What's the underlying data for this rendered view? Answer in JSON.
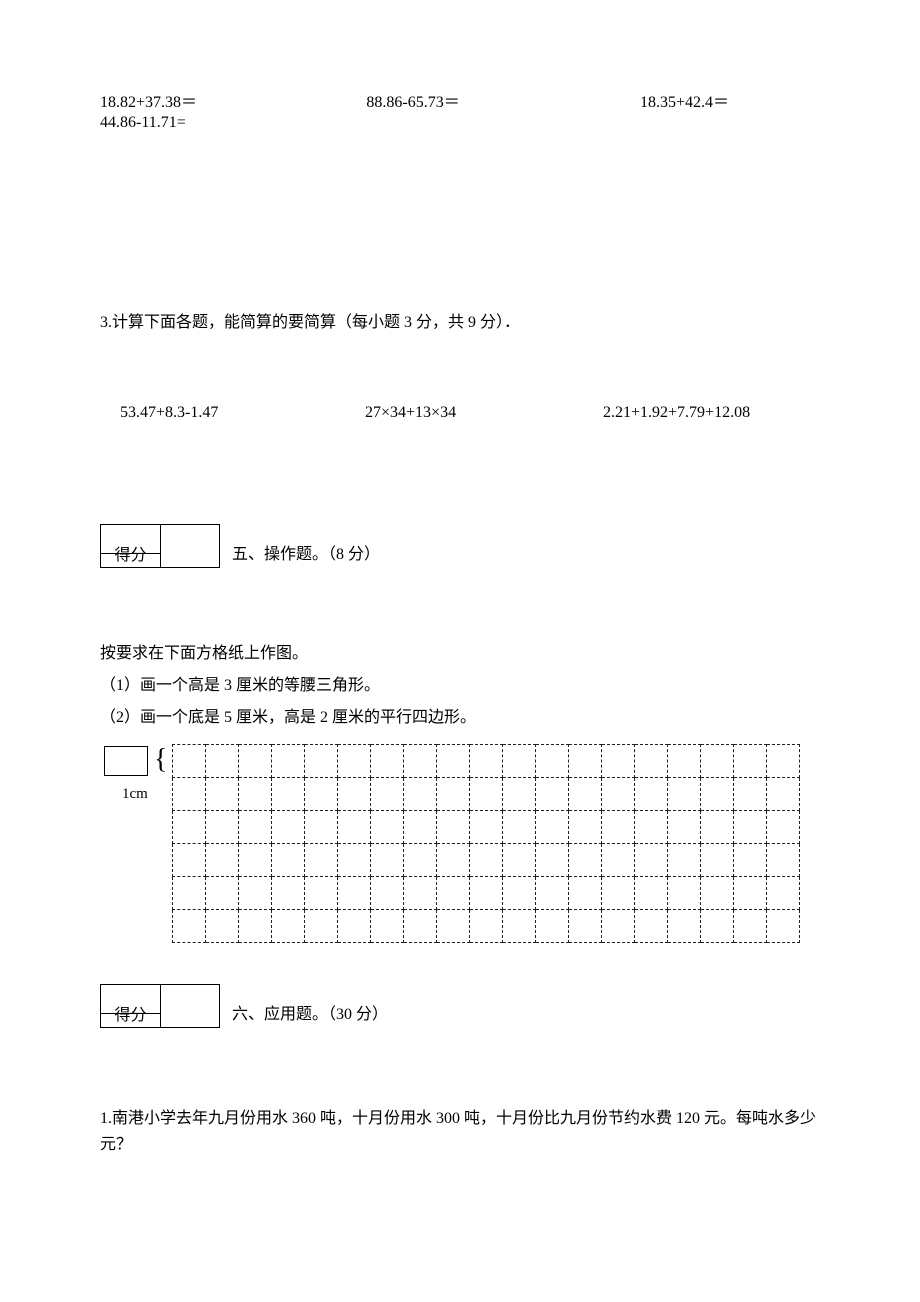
{
  "equations": {
    "row1": {
      "a": "18.82+37.38＝",
      "b": "88.86‐65.73＝",
      "c": "18.35+42.4＝"
    },
    "row2": {
      "a": "44.86-11.71="
    }
  },
  "q3": {
    "title": "3.计算下面各题，能简算的要简算（每小题 3 分，共 9 分）．",
    "a": "53.47+8.3‐1.47",
    "b": "27×34+13×34",
    "c": "2.21+1.92+7.79+12.08"
  },
  "section5": {
    "score_label": "得分",
    "title": "五、操作题。（8 分）",
    "intro": "按要求在下面方格纸上作图。",
    "line1": "（1）画一个高是 3 厘米的等腰三角形。",
    "line2": "（2）画一个底是 5 厘米，高是 2 厘米的平行四边形。",
    "cm_label": "1cm",
    "grid": {
      "rows": 6,
      "cols": 19
    }
  },
  "section6": {
    "score_label": "得分",
    "title": "六、应用题。（30 分）",
    "q1": "1.南港小学去年九月份用水 360 吨，十月份用水 300 吨，十月份比九月份节约水费 120 元。每吨水多少元？"
  }
}
